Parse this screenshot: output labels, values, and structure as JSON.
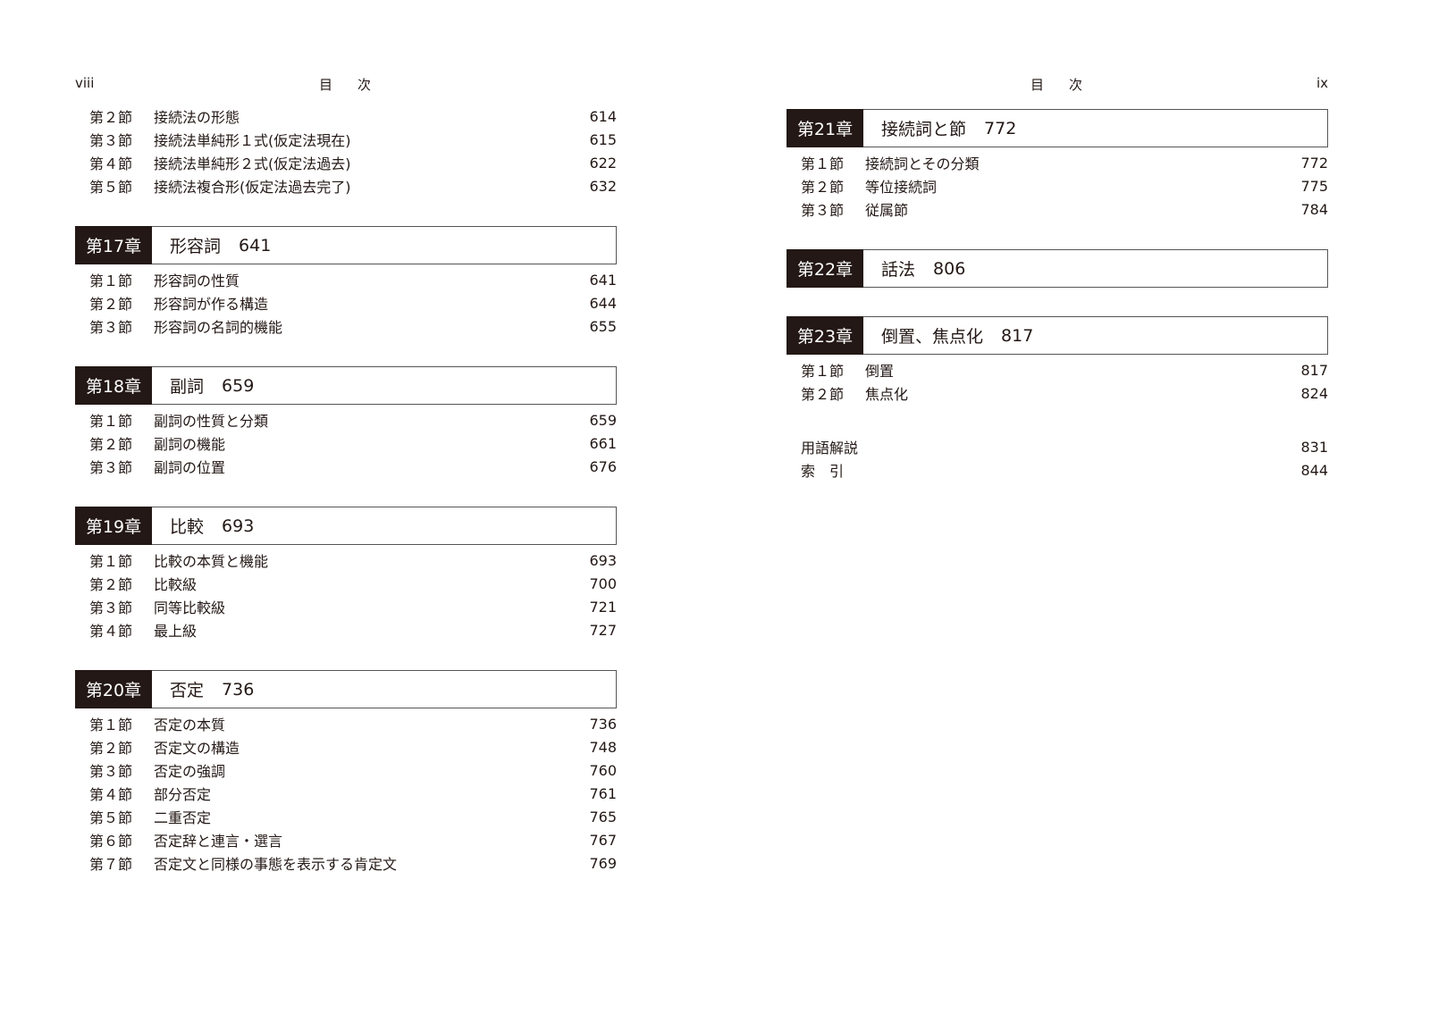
{
  "left_page": {
    "folio": "viii",
    "running_head": [
      "目",
      "次"
    ],
    "top_sections": [
      {
        "no": "第２節",
        "title": "接続法の形態",
        "page": "614"
      },
      {
        "no": "第３節",
        "title": "接続法単純形１式(仮定法現在)",
        "page": "615"
      },
      {
        "no": "第４節",
        "title": "接続法単純形２式(仮定法過去)",
        "page": "622"
      },
      {
        "no": "第５節",
        "title": "接続法複合形(仮定法過去完了)",
        "page": "632"
      }
    ],
    "chapters": [
      {
        "label": "第17章",
        "title": "形容詞",
        "page": "641",
        "sections": [
          {
            "no": "第１節",
            "title": "形容詞の性質",
            "page": "641"
          },
          {
            "no": "第２節",
            "title": "形容詞が作る構造",
            "page": "644"
          },
          {
            "no": "第３節",
            "title": "形容詞の名詞的機能",
            "page": "655"
          }
        ]
      },
      {
        "label": "第18章",
        "title": "副詞",
        "page": "659",
        "sections": [
          {
            "no": "第１節",
            "title": "副詞の性質と分類",
            "page": "659"
          },
          {
            "no": "第２節",
            "title": "副詞の機能",
            "page": "661"
          },
          {
            "no": "第３節",
            "title": "副詞の位置",
            "page": "676"
          }
        ]
      },
      {
        "label": "第19章",
        "title": "比較",
        "page": "693",
        "sections": [
          {
            "no": "第１節",
            "title": "比較の本質と機能",
            "page": "693"
          },
          {
            "no": "第２節",
            "title": "比較級",
            "page": "700"
          },
          {
            "no": "第３節",
            "title": "同等比較級",
            "page": "721"
          },
          {
            "no": "第４節",
            "title": "最上級",
            "page": "727"
          }
        ]
      },
      {
        "label": "第20章",
        "title": "否定",
        "page": "736",
        "sections": [
          {
            "no": "第１節",
            "title": "否定の本質",
            "page": "736"
          },
          {
            "no": "第２節",
            "title": "否定文の構造",
            "page": "748"
          },
          {
            "no": "第３節",
            "title": "否定の強調",
            "page": "760"
          },
          {
            "no": "第４節",
            "title": "部分否定",
            "page": "761"
          },
          {
            "no": "第５節",
            "title": "二重否定",
            "page": "765"
          },
          {
            "no": "第６節",
            "title": "否定辞と連言・選言",
            "page": "767"
          },
          {
            "no": "第７節",
            "title": "否定文と同様の事態を表示する肯定文",
            "page": "769"
          }
        ]
      }
    ]
  },
  "right_page": {
    "folio": "ix",
    "running_head": [
      "目",
      "次"
    ],
    "chapters": [
      {
        "label": "第21章",
        "title": "接続詞と節",
        "page": "772",
        "sections": [
          {
            "no": "第１節",
            "title": "接続詞とその分類",
            "page": "772"
          },
          {
            "no": "第２節",
            "title": "等位接続詞",
            "page": "775"
          },
          {
            "no": "第３節",
            "title": "従属節",
            "page": "784"
          }
        ]
      },
      {
        "label": "第22章",
        "title": "話法",
        "page": "806",
        "sections": []
      },
      {
        "label": "第23章",
        "title": "倒置、焦点化",
        "page": "817",
        "sections": [
          {
            "no": "第１節",
            "title": "倒置",
            "page": "817"
          },
          {
            "no": "第２節",
            "title": "焦点化",
            "page": "824"
          }
        ]
      }
    ],
    "back_matter": [
      {
        "title": "用語解説",
        "page": "831"
      },
      {
        "title": "索　引",
        "page": "844"
      }
    ]
  }
}
